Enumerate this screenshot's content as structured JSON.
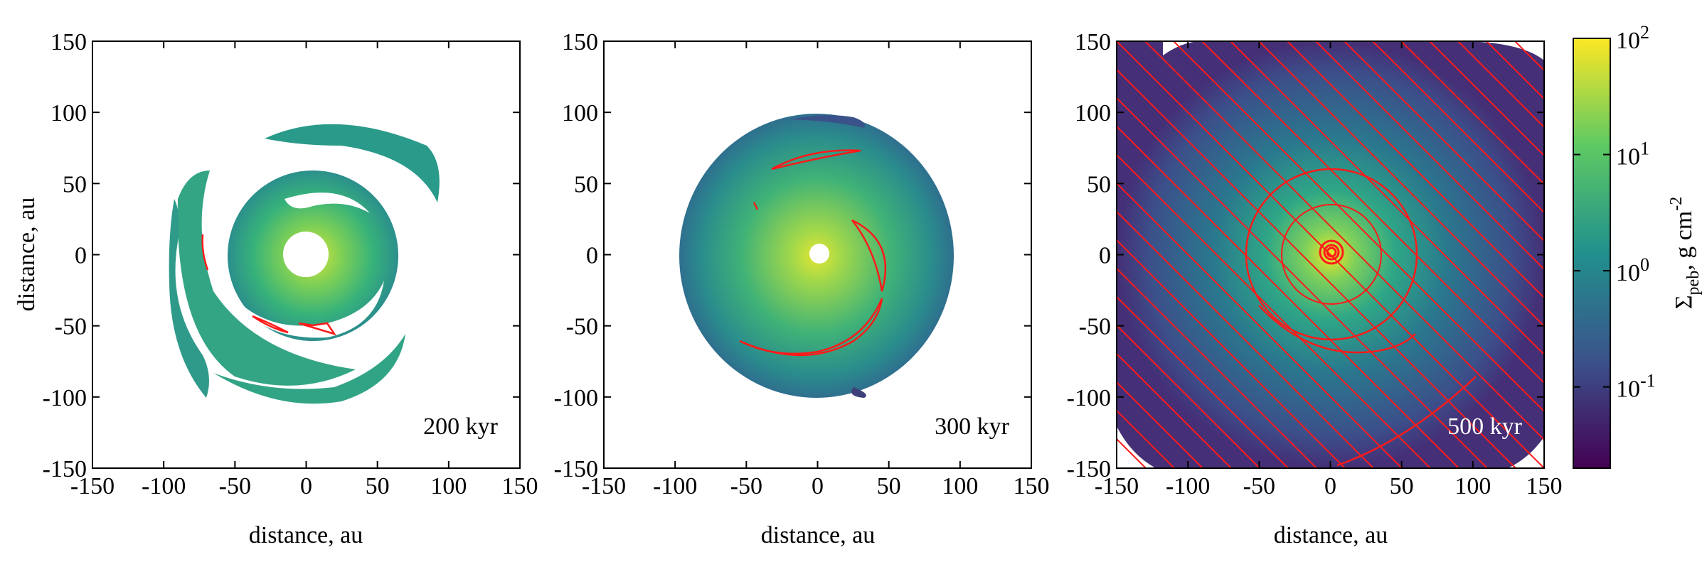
{
  "chart_data": [
    {
      "type": "heatmap",
      "panel_label": "200 kyr",
      "xlabel": "distance, au",
      "ylabel": "distance, au",
      "xlim": [
        -150,
        150
      ],
      "ylim": [
        -150,
        150
      ],
      "xticks": [
        -150,
        -100,
        -50,
        0,
        50,
        100,
        150
      ],
      "yticks": [
        -150,
        -100,
        -50,
        0,
        50,
        100,
        150
      ],
      "grid": false
    },
    {
      "type": "heatmap",
      "panel_label": "300 kyr",
      "xlabel": "distance, au",
      "ylabel": "",
      "xlim": [
        -150,
        150
      ],
      "ylim": [
        -150,
        150
      ],
      "xticks": [
        -150,
        -100,
        -50,
        0,
        50,
        100,
        150
      ],
      "yticks": [
        -150,
        -100,
        -50,
        0,
        50,
        100,
        150
      ],
      "grid": false
    },
    {
      "type": "heatmap",
      "panel_label": "500 kyr",
      "xlabel": "distance, au",
      "ylabel": "",
      "xlim": [
        -150,
        150
      ],
      "ylim": [
        -150,
        150
      ],
      "xticks": [
        -150,
        -100,
        -50,
        0,
        50,
        100,
        150
      ],
      "yticks": [
        -150,
        -100,
        -50,
        0,
        50,
        100,
        150
      ],
      "grid": false
    }
  ],
  "colorbar": {
    "label_main": "Σ",
    "label_sub": "peb",
    "label_rest": ", g cm",
    "label_sup": "-2",
    "scale": "log",
    "range": [
      0.02,
      100
    ],
    "ticks": [
      {
        "base": "10",
        "exp": "-1",
        "value": 0.1
      },
      {
        "base": "10",
        "exp": "0",
        "value": 1
      },
      {
        "base": "10",
        "exp": "1",
        "value": 10
      },
      {
        "base": "10",
        "exp": "2",
        "value": 100
      }
    ],
    "colormap": [
      "#440154",
      "#3b528b",
      "#21908d",
      "#5dc963",
      "#fde725"
    ]
  },
  "colors": {
    "contour": "#ff1a1a"
  }
}
